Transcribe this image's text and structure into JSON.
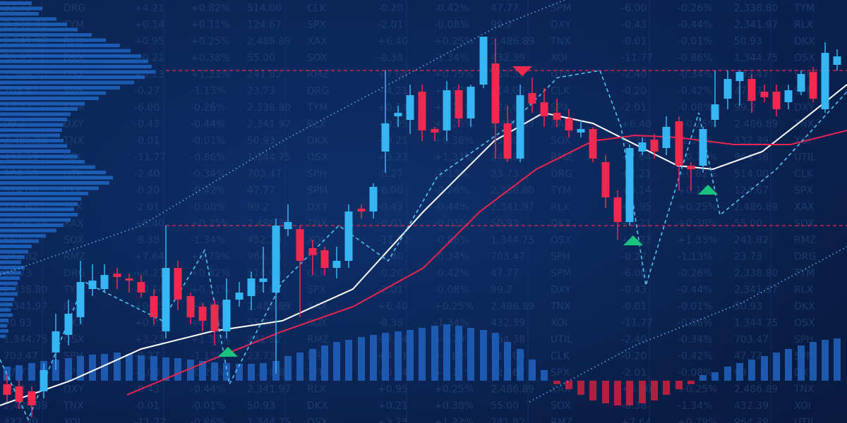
{
  "chart_data": {
    "type": "candlestick",
    "xlim": [
      0,
      1200
    ],
    "ylim": [
      0,
      600
    ],
    "up_color": "#35b6f2",
    "down_color": "#f2294f",
    "x": [
      10,
      27,
      45,
      62,
      79,
      97,
      114,
      131,
      148,
      166,
      183,
      200,
      218,
      235,
      252,
      270,
      287,
      304,
      321,
      339,
      356,
      373,
      391,
      408,
      425,
      443,
      460,
      477,
      494,
      512,
      529,
      546,
      564,
      581,
      598,
      616,
      633,
      650,
      667,
      685,
      702,
      719,
      737,
      754,
      771,
      789,
      806,
      823,
      840,
      858,
      875,
      892,
      910,
      927,
      944,
      962,
      979,
      996,
      1013,
      1031,
      1048,
      1065,
      1083,
      1100,
      1117,
      1135,
      1152,
      1169,
      1186
    ],
    "open": [
      55,
      52,
      45,
      45,
      100,
      125,
      150,
      190,
      190,
      212,
      205,
      200,
      180,
      130,
      220,
      180,
      165,
      168,
      130,
      175,
      180,
      200,
      185,
      275,
      275,
      248,
      245,
      220,
      230,
      304,
      300,
      385,
      435,
      430,
      470,
      417,
      415,
      472,
      432,
      480,
      510,
      425,
      375,
      468,
      455,
      440,
      432,
      412,
      417,
      370,
      320,
      285,
      385,
      402,
      390,
      428,
      365,
      365,
      430,
      460,
      485,
      488,
      470,
      470,
      455,
      470,
      498,
      445,
      508
    ],
    "close": [
      40,
      30,
      25,
      75,
      130,
      155,
      200,
      202,
      210,
      207,
      202,
      185,
      150,
      220,
      175,
      150,
      145,
      130,
      175,
      185,
      205,
      205,
      280,
      285,
      230,
      238,
      220,
      230,
      300,
      300,
      335,
      425,
      440,
      465,
      415,
      412,
      472,
      432,
      477,
      548,
      425,
      375,
      465,
      453,
      435,
      430,
      415,
      417,
      375,
      320,
      285,
      390,
      398,
      385,
      420,
      365,
      360,
      417,
      452,
      488,
      498,
      457,
      462,
      445,
      472,
      495,
      460,
      525,
      520
    ],
    "high": [
      70,
      60,
      52,
      85,
      155,
      175,
      230,
      225,
      225,
      220,
      212,
      210,
      190,
      280,
      230,
      185,
      170,
      175,
      205,
      200,
      215,
      250,
      290,
      310,
      280,
      260,
      250,
      250,
      310,
      310,
      340,
      500,
      450,
      480,
      480,
      420,
      485,
      480,
      480,
      548,
      545,
      450,
      480,
      490,
      475,
      460,
      445,
      430,
      420,
      380,
      330,
      395,
      405,
      410,
      435,
      435,
      370,
      420,
      500,
      500,
      500,
      495,
      480,
      480,
      480,
      500,
      505,
      540,
      530
    ],
    "low": [
      30,
      20,
      8,
      35,
      75,
      110,
      140,
      180,
      185,
      190,
      185,
      178,
      140,
      120,
      160,
      140,
      130,
      110,
      120,
      165,
      160,
      185,
      70,
      265,
      150,
      210,
      210,
      205,
      220,
      290,
      290,
      355,
      420,
      410,
      400,
      400,
      400,
      420,
      420,
      475,
      375,
      370,
      370,
      440,
      420,
      420,
      405,
      405,
      370,
      305,
      260,
      280,
      380,
      375,
      380,
      330,
      330,
      355,
      420,
      445,
      450,
      440,
      455,
      435,
      445,
      465,
      455,
      440,
      500
    ],
    "histogram": {
      "pos_color": "#1f5fb8",
      "neg_color": "#c4203f",
      "values": [
        20,
        22,
        25,
        28,
        30,
        32,
        35,
        37,
        38,
        40,
        38,
        36,
        35,
        33,
        32,
        30,
        28,
        26,
        25,
        24,
        24,
        25,
        28,
        35,
        40,
        45,
        50,
        55,
        58,
        62,
        65,
        68,
        70,
        72,
        75,
        78,
        80,
        78,
        75,
        72,
        68,
        55,
        45,
        30,
        15,
        -5,
        -12,
        -20,
        -28,
        -32,
        -35,
        -35,
        -32,
        -28,
        -20,
        -12,
        -5,
        8,
        12,
        20,
        25,
        30,
        35,
        40,
        45,
        50,
        55,
        58,
        60
      ]
    },
    "volume_profile": {
      "color": "#1f66c2",
      "values": [
        45,
        60,
        55,
        80,
        95,
        110,
        130,
        150,
        170,
        185,
        200,
        210,
        215,
        220,
        205,
        190,
        170,
        150,
        140,
        120,
        110,
        100,
        95,
        90,
        88,
        85,
        90,
        95,
        100,
        110,
        120,
        135,
        150,
        160,
        155,
        140,
        125,
        115,
        110,
        105,
        110,
        100,
        90,
        80,
        65,
        55,
        45,
        40,
        35,
        30,
        35,
        30,
        28,
        25,
        22,
        25,
        20,
        18,
        15,
        18,
        12,
        10,
        12,
        8
      ]
    },
    "lines": [
      {
        "style": "solid",
        "color": "#ffffff",
        "x": [
          0,
          100,
          200,
          300,
          400,
          500,
          600,
          700,
          770,
          840,
          900,
          960,
          1010,
          1080,
          1150,
          1200
        ],
        "values": [
          25,
          60,
          105,
          130,
          145,
          190,
          300,
          400,
          440,
          425,
          395,
          365,
          360,
          385,
          440,
          480
        ]
      },
      {
        "style": "solid",
        "color": "#e8244f",
        "x": [
          180,
          300,
          400,
          500,
          600,
          680,
          760,
          840,
          900,
          960,
          1040,
          1120,
          1200
        ],
        "values": [
          40,
          90,
          130,
          165,
          220,
          300,
          360,
          400,
          408,
          405,
          395,
          395,
          415
        ]
      },
      {
        "style": "dashed",
        "color": "#4fc3f0",
        "x": [
          0,
          40,
          120,
          230,
          290,
          325,
          400,
          480,
          550,
          620,
          720,
          790,
          850,
          880,
          915,
          990,
          1020,
          1100,
          1200
        ],
        "values": [
          90,
          5,
          200,
          145,
          245,
          55,
          200,
          280,
          230,
          350,
          420,
          490,
          500,
          420,
          195,
          440,
          295,
          360,
          470
        ]
      },
      {
        "style": "dotted",
        "color": "#5aa9e8",
        "x": [
          0,
          200,
          400,
          550,
          700,
          800
        ],
        "values": [
          210,
          280,
          400,
          480,
          560,
          600
        ]
      },
      {
        "style": "dotted",
        "color": "#5aa9e8",
        "x": [
          750,
          900,
          1050,
          1200
        ],
        "values": [
          30,
          110,
          170,
          250
        ]
      }
    ],
    "levels": {
      "color": "#e8244f",
      "values": [
        500,
        280
      ]
    },
    "signals_up": {
      "color": "#19c37d",
      "x": [
        323,
        897,
        1003
      ],
      "values": [
        100,
        258,
        330
      ]
    },
    "signals_down": {
      "color": "#f2294f",
      "x": [
        740
      ],
      "values": [
        500
      ]
    }
  },
  "ticker_tape": [
    [
      "DRG",
      "+4.21",
      "+0.82%",
      "514.00"
    ],
    [
      "CLK",
      "-0.20",
      "-0.42%",
      "47.77"
    ],
    [
      "SPM",
      "-6.00",
      "-0.26%",
      "2,338.80"
    ],
    [
      "TYM",
      "+0.14",
      "+0.11%",
      "124.67"
    ],
    [
      "SPX",
      "-2.01",
      "-0.08%",
      "99.2"
    ],
    [
      "DXY",
      "-0.43",
      "-0.44%",
      "2,341.97"
    ],
    [
      "RLX",
      "+0.95",
      "+0.25%",
      "2,486.89"
    ],
    [
      "XAX",
      "+6.40",
      "+0.25%",
      "2,486.89"
    ],
    [
      "TNX",
      "-0.01",
      "-0.01%",
      "50.93"
    ],
    [
      "DKX",
      "+0.21",
      "+0.38%",
      "55.00"
    ],
    [
      "SOX",
      "-8.38",
      "-1.34%",
      "432.39"
    ],
    [
      "XOI",
      "-11.77",
      "-0.86%",
      "1,344.75"
    ],
    [
      "OSX",
      "+3.23",
      "+1.33%",
      "241.82"
    ],
    [
      "RMZ",
      "+7.64",
      "+0.79%",
      "964.38"
    ],
    [
      "UTIL",
      "-2.40",
      "-0.34%",
      "703.47"
    ],
    [
      "SPH",
      "-0.27",
      "-1.13%",
      "23.73"
    ]
  ]
}
